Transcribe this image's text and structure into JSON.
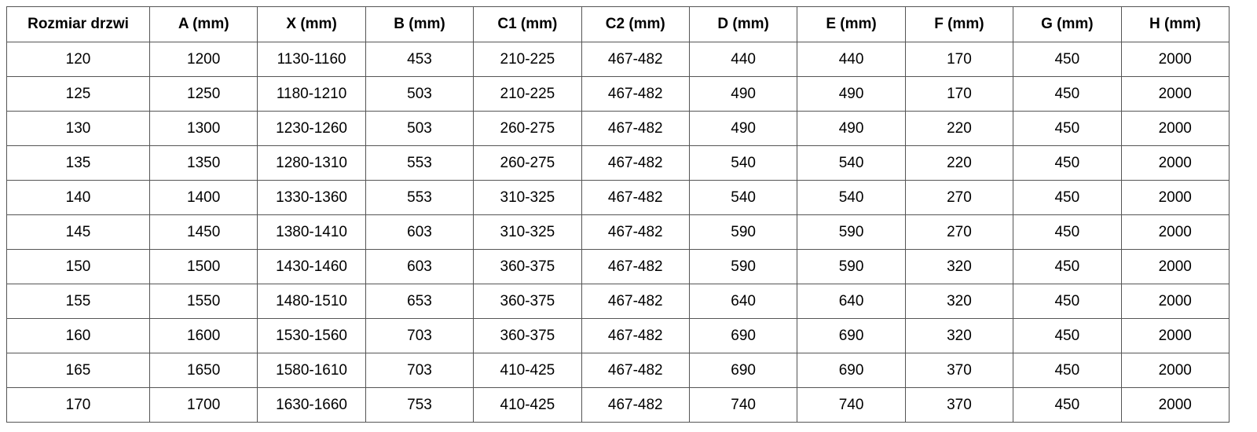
{
  "table": {
    "header": [
      "Rozmiar drzwi",
      "A (mm)",
      "X (mm)",
      "B (mm)",
      "C1 (mm)",
      "C2 (mm)",
      "D (mm)",
      "E (mm)",
      "F (mm)",
      "G (mm)",
      "H (mm)"
    ],
    "rows": [
      [
        120,
        1200,
        "1130-1160",
        453,
        "210-225",
        "467-482",
        440,
        440,
        170,
        450,
        2000
      ],
      [
        125,
        1250,
        "1180-1210",
        503,
        "210-225",
        "467-482",
        490,
        490,
        170,
        450,
        2000
      ],
      [
        130,
        1300,
        "1230-1260",
        503,
        "260-275",
        "467-482",
        490,
        490,
        220,
        450,
        2000
      ],
      [
        135,
        1350,
        "1280-1310",
        553,
        "260-275",
        "467-482",
        540,
        540,
        220,
        450,
        2000
      ],
      [
        140,
        1400,
        "1330-1360",
        553,
        "310-325",
        "467-482",
        540,
        540,
        270,
        450,
        2000
      ],
      [
        145,
        1450,
        "1380-1410",
        603,
        "310-325",
        "467-482",
        590,
        590,
        270,
        450,
        2000
      ],
      [
        150,
        1500,
        "1430-1460",
        603,
        "360-375",
        "467-482",
        590,
        590,
        320,
        450,
        2000
      ],
      [
        155,
        1550,
        "1480-1510",
        653,
        "360-375",
        "467-482",
        640,
        640,
        320,
        450,
        2000
      ],
      [
        160,
        1600,
        "1530-1560",
        703,
        "360-375",
        "467-482",
        690,
        690,
        320,
        450,
        2000
      ],
      [
        165,
        1650,
        "1580-1610",
        703,
        "410-425",
        "467-482",
        690,
        690,
        370,
        450,
        2000
      ],
      [
        170,
        1700,
        "1630-1660",
        753,
        "410-425",
        "467-482",
        740,
        740,
        370,
        450,
        2000
      ]
    ]
  }
}
